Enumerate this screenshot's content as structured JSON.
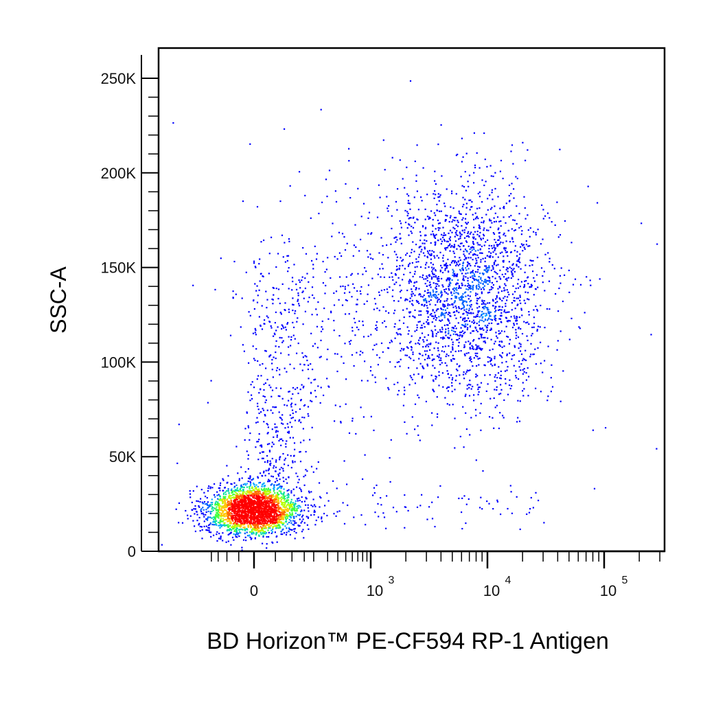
{
  "chart_data": {
    "type": "scatter",
    "subtype": "flow-cytometry-density-dot-plot",
    "xlabel": "BD Horizon™ PE-CF594 RP-1 Antigen",
    "ylabel": "SSC-A",
    "x_scale": "biexponential",
    "y_scale": "linear",
    "ylim": [
      0,
      262144
    ],
    "xlim": [
      -250,
      200000
    ],
    "y_ticks": [
      {
        "value": 0,
        "label": "0"
      },
      {
        "value": 50000,
        "label": "50K"
      },
      {
        "value": 100000,
        "label": "100K"
      },
      {
        "value": 150000,
        "label": "150K"
      },
      {
        "value": 200000,
        "label": "200K"
      },
      {
        "value": 250000,
        "label": "250K"
      }
    ],
    "x_ticks": [
      {
        "value": 0,
        "label": "0",
        "exponent": ""
      },
      {
        "value": 1000,
        "label": "10",
        "exponent": "3"
      },
      {
        "value": 10000,
        "label": "10",
        "exponent": "4"
      },
      {
        "value": 100000,
        "label": "10",
        "exponent": "5"
      }
    ],
    "density_colors": [
      "#0000ff",
      "#00a0ff",
      "#00e0a0",
      "#80ff00",
      "#ffe000",
      "#ff8000",
      "#ff0000"
    ],
    "populations": [
      {
        "name": "negative population",
        "x_center": 0,
        "y_center": 22000,
        "x_spread_units": 0.8,
        "y_spread": 6500,
        "count": 2600,
        "peak_density": "red"
      },
      {
        "name": "negative SSC-high tail",
        "x_center": 80,
        "y_center": 85000,
        "x_spread_units": 0.9,
        "y_spread": 30000,
        "count": 520,
        "peak_density": "blue"
      },
      {
        "name": "positive population",
        "x_center": 5000,
        "y_center": 138000,
        "x_spread": "0.45 decade",
        "y_spread": 28000,
        "count": 2100,
        "peak_density": "cyan"
      },
      {
        "name": "intermediate scatter",
        "x_center": 900,
        "y_center": 120000,
        "x_spread": "0.8 decade",
        "y_spread": 40000,
        "count": 260,
        "peak_density": "blue"
      }
    ],
    "grid": false,
    "legend": "none"
  }
}
